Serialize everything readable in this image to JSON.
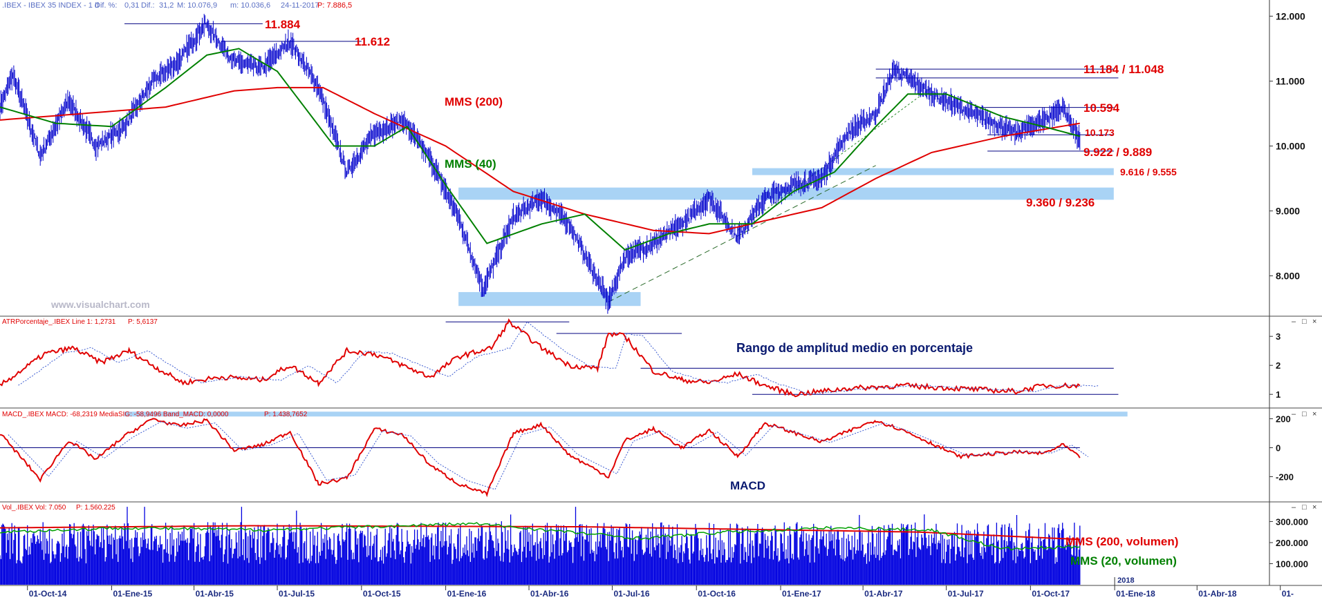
{
  "colors": {
    "price": "#0000cc",
    "mms200": "#e00000",
    "mms40": "#008000",
    "annotation_red": "#e00000",
    "navy": "#000080",
    "zone": "#a9d3f5",
    "header_red": "#e00000",
    "header_blue": "#5a6fc4",
    "axis_blue": "#1a3fb0"
  },
  "panels": {
    "price": {
      "header": {
        "name": ".IBEX - IBEX 35 INDEX - 1 d",
        "dif_pct_label": "Dif. %:",
        "dif_pct": "0,31",
        "dif_label": "Dif.:",
        "dif": "31,2",
        "m_label": "M: 10.076,9",
        "min_label": "m: 10.036,6",
        "date": "24-11-2017",
        "p_label": "P: 7.886,5"
      },
      "watermark": "www.visualchart.com",
      "labels": {
        "a1": "11.884",
        "a2": "11.612",
        "a3": "11.184 / 11.048",
        "a4": "10.594",
        "a5": "10.173",
        "a6": "9.922 / 9.889",
        "a7": "9.616 / 9.555",
        "a8": "9.360 / 9.236",
        "mms200": "MMS (200)",
        "mms40": "MMS (40)"
      }
    },
    "atr": {
      "header": "ATRPorcentaje_.IBEX Line 1: 1,2731",
      "header_p": "P: 5,6137",
      "title": "Rango de amplitud medio en porcentaje"
    },
    "macd": {
      "header": "MACD_.IBEX MACD: -68,2319 MediaSIG: -58,9496 Band_MACD: 0,0000",
      "header_p": "P: 1.438,7652",
      "title": "MACD"
    },
    "vol": {
      "header": "Vol_.IBEX Vol: 7.050",
      "header_p": "P: 1.560.225",
      "mms200": "MMS (200, volumen)",
      "mms20": "MMS (20, volumen)"
    }
  },
  "x_axis": {
    "ticks": [
      "01-Oct-14",
      "01-Ene-15",
      "01-Abr-15",
      "01-Jul-15",
      "01-Oct-15",
      "01-Ene-16",
      "01-Abr-16",
      "01-Jul-16",
      "01-Oct-16",
      "01-Ene-17",
      "01-Abr-17",
      "01-Jul-17",
      "01-Oct-17",
      "01-Ene-18",
      "01-Abr-18",
      "01-"
    ],
    "year_marker": "2018"
  },
  "chart_data": [
    {
      "type": "line",
      "panel": "price",
      "y_ticks": [
        "12.000",
        "11.000",
        "10.000",
        "9.000",
        "8.000"
      ],
      "y_tick_values": [
        12000,
        11000,
        10000,
        9000,
        8000
      ],
      "ylim": [
        7400,
        12100
      ],
      "x_dates": [
        "2014-09-01",
        "2018-06-01"
      ],
      "series": [
        {
          "name": "MMS (200)",
          "points": [
            [
              "2014-09-01",
              10400
            ],
            [
              "2014-12-01",
              10500
            ],
            [
              "2015-03-01",
              10600
            ],
            [
              "2015-05-15",
              10850
            ],
            [
              "2015-07-01",
              10900
            ],
            [
              "2015-08-20",
              10900
            ],
            [
              "2015-10-15",
              10500
            ],
            [
              "2016-01-01",
              10000
            ],
            [
              "2016-03-15",
              9300
            ],
            [
              "2016-06-01",
              8950
            ],
            [
              "2016-08-15",
              8700
            ],
            [
              "2016-10-15",
              8650
            ],
            [
              "2016-12-15",
              8850
            ],
            [
              "2017-02-15",
              9050
            ],
            [
              "2017-04-15",
              9500
            ],
            [
              "2017-06-15",
              9900
            ],
            [
              "2017-09-01",
              10150
            ],
            [
              "2017-11-24",
              10350
            ]
          ]
        },
        {
          "name": "MMS (40)",
          "points": [
            [
              "2014-09-01",
              10600
            ],
            [
              "2014-11-01",
              10350
            ],
            [
              "2015-01-01",
              10300
            ],
            [
              "2015-03-01",
              10900
            ],
            [
              "2015-04-15",
              11400
            ],
            [
              "2015-05-20",
              11500
            ],
            [
              "2015-07-01",
              11150
            ],
            [
              "2015-09-01",
              10000
            ],
            [
              "2015-10-15",
              10000
            ],
            [
              "2015-11-20",
              10300
            ],
            [
              "2016-01-01",
              9400
            ],
            [
              "2016-02-15",
              8500
            ],
            [
              "2016-04-15",
              8800
            ],
            [
              "2016-06-01",
              8950
            ],
            [
              "2016-07-15",
              8400
            ],
            [
              "2016-09-01",
              8650
            ],
            [
              "2016-10-15",
              8800
            ],
            [
              "2016-12-01",
              8800
            ],
            [
              "2017-01-15",
              9300
            ],
            [
              "2017-03-01",
              9600
            ],
            [
              "2017-04-15",
              10300
            ],
            [
              "2017-05-20",
              10800
            ],
            [
              "2017-07-01",
              10800
            ],
            [
              "2017-09-01",
              10450
            ],
            [
              "2017-10-15",
              10300
            ],
            [
              "2017-11-24",
              10150
            ]
          ]
        },
        {
          "name": "Price",
          "points": [
            [
              "2014-09-01",
              10600
            ],
            [
              "2014-09-15",
              11100
            ],
            [
              "2014-10-15",
              9850
            ],
            [
              "2014-11-15",
              10700
            ],
            [
              "2014-12-15",
              10000
            ],
            [
              "2015-01-15",
              10300
            ],
            [
              "2015-02-15",
              11000
            ],
            [
              "2015-03-15",
              11300
            ],
            [
              "2015-04-13",
              11884
            ],
            [
              "2015-05-15",
              11300
            ],
            [
              "2015-06-15",
              11200
            ],
            [
              "2015-07-15",
              11612
            ],
            [
              "2015-08-15",
              10900
            ],
            [
              "2015-09-15",
              9600
            ],
            [
              "2015-10-15",
              10200
            ],
            [
              "2015-11-15",
              10400
            ],
            [
              "2015-12-15",
              9800
            ],
            [
              "2016-01-15",
              8900
            ],
            [
              "2016-02-11",
              7800
            ],
            [
              "2016-03-15",
              8900
            ],
            [
              "2016-04-15",
              9200
            ],
            [
              "2016-05-15",
              8800
            ],
            [
              "2016-06-27",
              7600
            ],
            [
              "2016-07-15",
              8300
            ],
            [
              "2016-08-15",
              8500
            ],
            [
              "2016-09-15",
              8800
            ],
            [
              "2016-10-15",
              9200
            ],
            [
              "2016-11-15",
              8600
            ],
            [
              "2016-12-15",
              9200
            ],
            [
              "2017-01-15",
              9400
            ],
            [
              "2017-02-15",
              9500
            ],
            [
              "2017-03-15",
              10200
            ],
            [
              "2017-04-15",
              10500
            ],
            [
              "2017-05-05",
              11184
            ],
            [
              "2017-06-15",
              10800
            ],
            [
              "2017-07-15",
              10600
            ],
            [
              "2017-08-15",
              10400
            ],
            [
              "2017-09-15",
              10200
            ],
            [
              "2017-10-15",
              10400
            ],
            [
              "2017-11-06",
              10594
            ],
            [
              "2017-11-24",
              10076
            ]
          ]
        }
      ],
      "zones": [
        {
          "label": "9.616 / 9.555",
          "from": "2016-12-01",
          "to": "2017-12-31",
          "low": 9555,
          "high": 9616
        },
        {
          "label": "9.360 / 9.236",
          "from": "2016-01-15",
          "to": "2017-12-31",
          "low": 9236,
          "high": 9360
        },
        {
          "label": "",
          "from": "2016-01-15",
          "to": "2016-08-01",
          "low": 7600,
          "high": 7750
        }
      ],
      "levels": [
        {
          "label": "11.884",
          "value": 11884,
          "from": "2015-01-15",
          "to": "2015-06-15"
        },
        {
          "label": "11.612",
          "value": 11612,
          "from": "2015-05-01",
          "to": "2015-10-01"
        },
        {
          "label": "11.184 / 11.048",
          "value": 11184,
          "from": "2017-04-15",
          "to": "2017-12-31"
        },
        {
          "label": "",
          "value": 11048,
          "from": "2017-04-15",
          "to": "2018-01-05"
        },
        {
          "label": "10.594",
          "value": 10594,
          "from": "2017-08-01",
          "to": "2017-12-31"
        },
        {
          "label": "10.173",
          "value": 10173,
          "from": "2017-08-15",
          "to": "2017-12-31"
        },
        {
          "label": "9.922 / 9.889",
          "value": 9922,
          "from": "2017-08-15",
          "to": "2017-12-31"
        }
      ]
    },
    {
      "type": "line",
      "panel": "atr",
      "y_ticks": [
        "3",
        "2",
        "1"
      ],
      "y_tick_values": [
        3,
        2,
        1
      ],
      "ylim": [
        0.6,
        3.6
      ],
      "series": [
        {
          "name": "ATR %",
          "points": [
            [
              "2014-09-01",
              1.3
            ],
            [
              "2014-10-20",
              2.4
            ],
            [
              "2014-11-20",
              2.6
            ],
            [
              "2014-12-20",
              2.1
            ],
            [
              "2015-01-20",
              2.5
            ],
            [
              "2015-02-20",
              1.9
            ],
            [
              "2015-03-20",
              1.4
            ],
            [
              "2015-05-01",
              1.6
            ],
            [
              "2015-06-15",
              1.5
            ],
            [
              "2015-07-15",
              2.0
            ],
            [
              "2015-08-15",
              1.4
            ],
            [
              "2015-09-15",
              2.5
            ],
            [
              "2015-10-15",
              2.4
            ],
            [
              "2015-11-15",
              2.0
            ],
            [
              "2015-12-15",
              1.6
            ],
            [
              "2016-01-15",
              2.3
            ],
            [
              "2016-02-20",
              2.6
            ],
            [
              "2016-03-10",
              3.5
            ],
            [
              "2016-04-15",
              2.6
            ],
            [
              "2016-05-15",
              2.0
            ],
            [
              "2016-06-15",
              1.9
            ],
            [
              "2016-06-27",
              3.1
            ],
            [
              "2016-07-15",
              3.0
            ],
            [
              "2016-08-15",
              1.8
            ],
            [
              "2016-09-15",
              1.5
            ],
            [
              "2016-10-15",
              1.4
            ],
            [
              "2016-11-15",
              1.7
            ],
            [
              "2016-12-15",
              1.3
            ],
            [
              "2017-01-15",
              1.0
            ],
            [
              "2017-03-15",
              1.2
            ],
            [
              "2017-05-15",
              1.3
            ],
            [
              "2017-07-15",
              1.2
            ],
            [
              "2017-09-15",
              1.1
            ],
            [
              "2017-10-15",
              1.3
            ],
            [
              "2017-11-24",
              1.3
            ]
          ]
        }
      ],
      "levels": [
        {
          "value": 3.5,
          "from": "2016-01-01",
          "to": "2016-05-15"
        },
        {
          "value": 3.1,
          "from": "2016-05-01",
          "to": "2016-09-15"
        },
        {
          "value": 1.9,
          "from": "2016-08-01",
          "to": "2017-12-31"
        },
        {
          "value": 1.0,
          "from": "2016-12-01",
          "to": "2018-01-05"
        }
      ]
    },
    {
      "type": "line",
      "panel": "macd",
      "y_ticks": [
        "200",
        "0",
        "-200"
      ],
      "y_tick_values": [
        200,
        0,
        -200
      ],
      "ylim": [
        -360,
        260
      ],
      "zero_line": 0,
      "series": [
        {
          "name": "MACD",
          "points": [
            [
              "2014-09-01",
              100
            ],
            [
              "2014-10-15",
              -220
            ],
            [
              "2014-11-15",
              50
            ],
            [
              "2014-12-15",
              -80
            ],
            [
              "2015-01-15",
              80
            ],
            [
              "2015-02-15",
              200
            ],
            [
              "2015-03-15",
              150
            ],
            [
              "2015-04-15",
              190
            ],
            [
              "2015-05-15",
              -20
            ],
            [
              "2015-06-15",
              20
            ],
            [
              "2015-07-15",
              110
            ],
            [
              "2015-08-15",
              -250
            ],
            [
              "2015-09-15",
              -210
            ],
            [
              "2015-10-15",
              130
            ],
            [
              "2015-11-15",
              90
            ],
            [
              "2015-12-15",
              -120
            ],
            [
              "2016-01-15",
              -250
            ],
            [
              "2016-02-15",
              -320
            ],
            [
              "2016-03-15",
              100
            ],
            [
              "2016-04-15",
              160
            ],
            [
              "2016-05-15",
              -50
            ],
            [
              "2016-06-27",
              -200
            ],
            [
              "2016-07-15",
              50
            ],
            [
              "2016-08-15",
              130
            ],
            [
              "2016-09-15",
              0
            ],
            [
              "2016-10-15",
              120
            ],
            [
              "2016-11-15",
              -60
            ],
            [
              "2016-12-15",
              170
            ],
            [
              "2017-02-15",
              40
            ],
            [
              "2017-04-15",
              190
            ],
            [
              "2017-05-15",
              120
            ],
            [
              "2017-06-15",
              30
            ],
            [
              "2017-07-15",
              -60
            ],
            [
              "2017-09-15",
              -30
            ],
            [
              "2017-10-15",
              -40
            ],
            [
              "2017-11-06",
              20
            ],
            [
              "2017-11-24",
              -70
            ]
          ]
        }
      ],
      "band": {
        "from": "2015-01-15",
        "to": "2018-01-15",
        "value": 230
      }
    },
    {
      "type": "bar",
      "panel": "vol",
      "y_ticks": [
        "300.000",
        "200.000",
        "100.000"
      ],
      "y_tick_values": [
        300000,
        200000,
        100000
      ],
      "ylim": [
        0,
        380000
      ],
      "series": [
        {
          "name": "MMS (200, volumen)",
          "points": [
            [
              "2014-09-01",
              270000
            ],
            [
              "2015-06-01",
              280000
            ],
            [
              "2016-06-01",
              275000
            ],
            [
              "2017-06-01",
              250000
            ],
            [
              "2017-11-24",
              215000
            ]
          ]
        },
        {
          "name": "MMS (20, volumen)",
          "points": [
            [
              "2014-09-01",
              250000
            ],
            [
              "2015-01-15",
              270000
            ],
            [
              "2015-06-15",
              260000
            ],
            [
              "2016-02-01",
              290000
            ],
            [
              "2016-08-01",
              220000
            ],
            [
              "2016-11-01",
              250000
            ],
            [
              "2017-03-01",
              270000
            ],
            [
              "2017-06-15",
              260000
            ],
            [
              "2017-09-01",
              170000
            ],
            [
              "2017-11-24",
              180000
            ]
          ]
        }
      ],
      "bars_range": {
        "from": "2014-09-01",
        "to": "2017-11-24",
        "typical": 220000
      }
    }
  ]
}
